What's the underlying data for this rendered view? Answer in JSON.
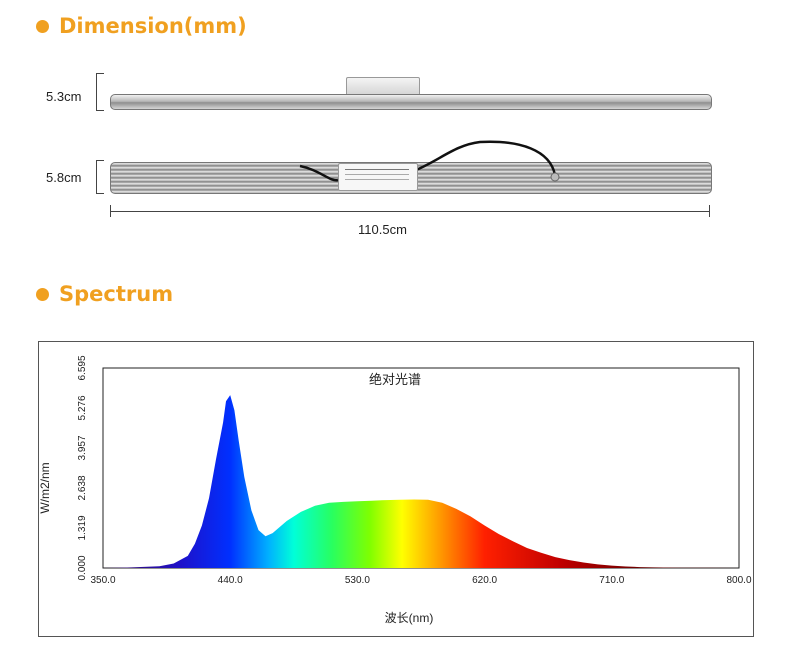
{
  "dimension": {
    "title": "Dimension(mm)",
    "height_top": "5.3cm",
    "height_bottom": "5.8cm",
    "length": "110.5cm"
  },
  "spectrum": {
    "title": "Spectrum"
  },
  "chart_data": {
    "type": "area",
    "title": "绝对光谱",
    "xlabel": "波长(nm)",
    "ylabel": "W/m2/nm",
    "xlim": [
      350.0,
      800.0
    ],
    "ylim": [
      0.0,
      6.595
    ],
    "x_ticks": [
      "350.0",
      "440.0",
      "530.0",
      "620.0",
      "710.0",
      "800.0"
    ],
    "y_ticks": [
      "0.000",
      "1.319",
      "2.638",
      "3.957",
      "5.276",
      "6.595"
    ],
    "fill": "visible-spectrum gradient",
    "x": [
      350,
      370,
      390,
      400,
      410,
      415,
      420,
      425,
      430,
      435,
      437,
      440,
      443,
      446,
      450,
      455,
      460,
      465,
      470,
      480,
      490,
      500,
      510,
      520,
      530,
      540,
      550,
      560,
      570,
      580,
      590,
      600,
      610,
      620,
      630,
      640,
      650,
      660,
      670,
      680,
      690,
      700,
      710,
      720,
      730,
      740,
      760,
      780,
      800
    ],
    "values": [
      0.0,
      0.02,
      0.06,
      0.15,
      0.4,
      0.8,
      1.4,
      2.3,
      3.6,
      4.8,
      5.5,
      5.7,
      5.2,
      4.2,
      3.0,
      1.9,
      1.25,
      1.05,
      1.15,
      1.55,
      1.85,
      2.05,
      2.15,
      2.18,
      2.2,
      2.22,
      2.24,
      2.25,
      2.26,
      2.25,
      2.15,
      1.95,
      1.7,
      1.4,
      1.12,
      0.88,
      0.66,
      0.5,
      0.36,
      0.26,
      0.18,
      0.12,
      0.08,
      0.05,
      0.03,
      0.02,
      0.01,
      0.005,
      0.0
    ],
    "grid": false
  }
}
